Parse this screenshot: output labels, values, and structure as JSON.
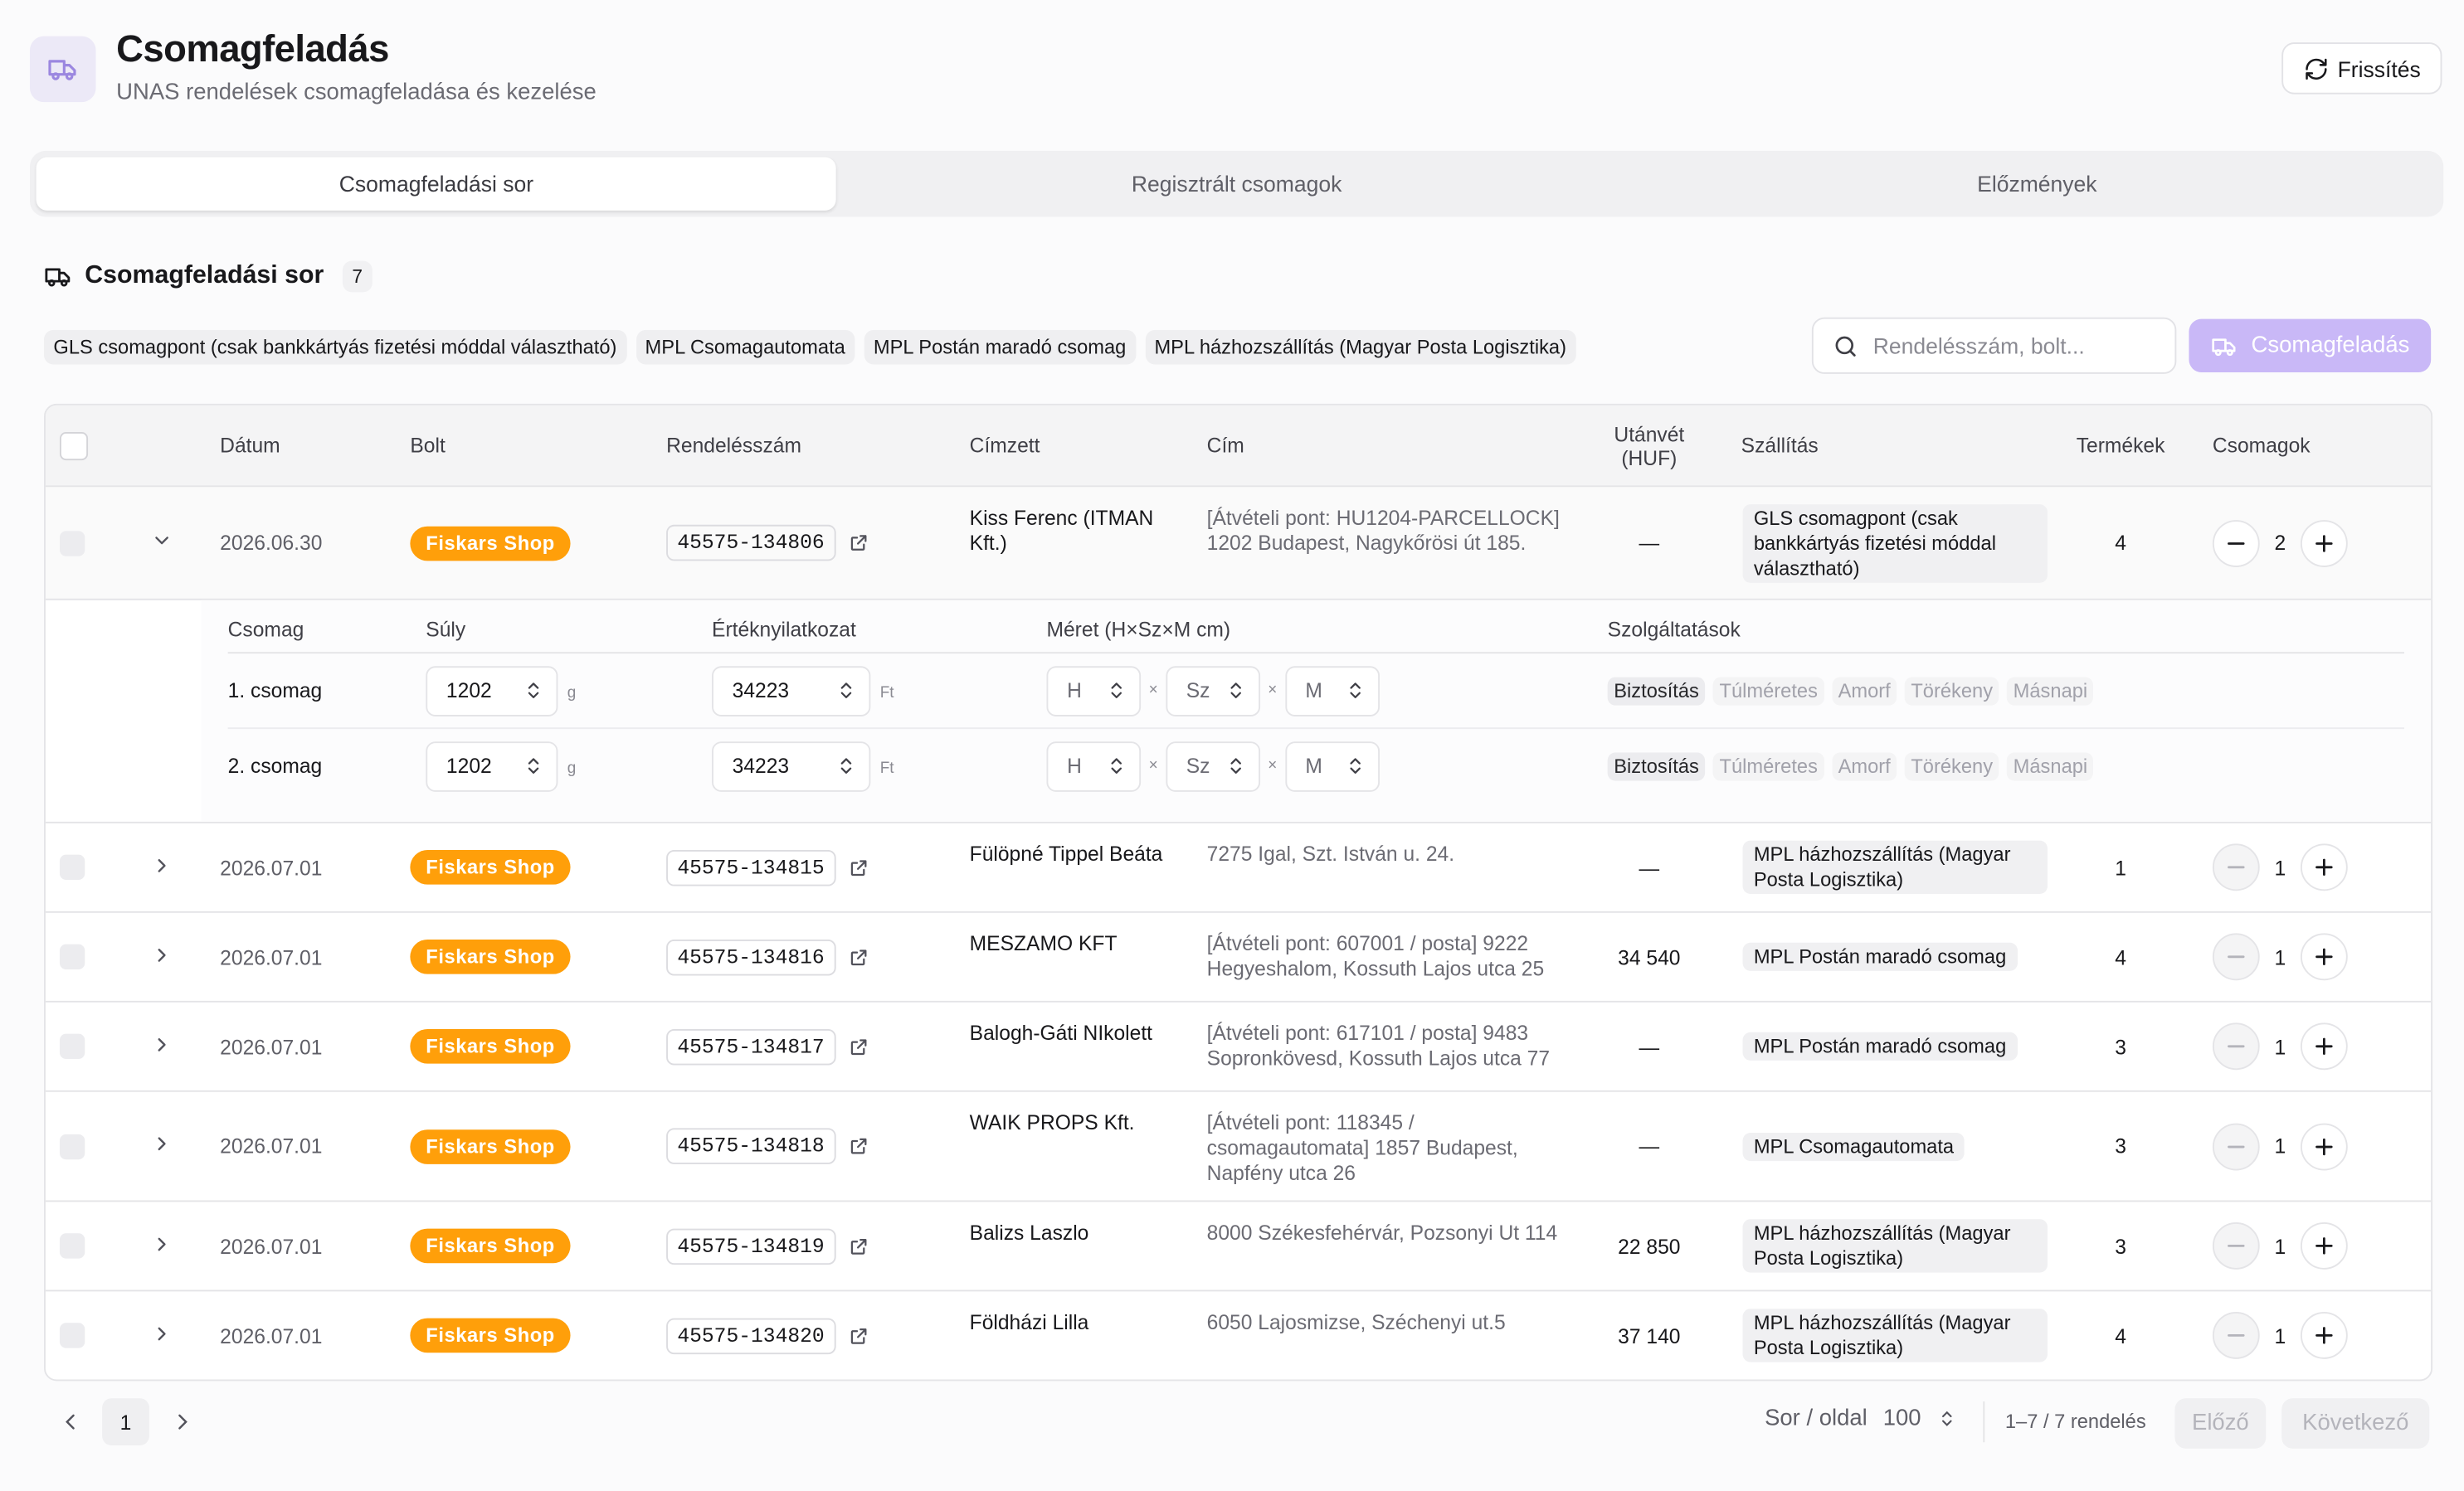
{
  "header": {
    "title": "Csomagfeladás",
    "subtitle": "UNAS rendelések csomagfeladása és kezelése",
    "refresh_button": "Frissítés"
  },
  "tabs": [
    "Csomagfeladási sor",
    "Regisztrált csomagok",
    "Előzmények"
  ],
  "section": {
    "title": "Csomagfeladási sor",
    "count": 7
  },
  "filters": [
    "GLS csomagpont (csak bankkártyás fizetési móddal választható)",
    "MPL Csomagautomata",
    "MPL Postán maradó csomag",
    "MPL házhozszállítás (Magyar Posta Logisztika)"
  ],
  "search_placeholder": "Rendelésszám, bolt...",
  "submit_button": "Csomagfeladás",
  "table": {
    "columns": [
      "Dátum",
      "Bolt",
      "Rendelésszám",
      "Címzett",
      "Cím",
      "Utánvét (HUF)",
      "Szállítás",
      "Termékek",
      "Csomagok"
    ],
    "rows": [
      {
        "date": "2026.06.30",
        "shop": "Fiskars Shop",
        "order": "45575-134806",
        "recipient": "Kiss Ferenc (ITMAN Kft.)",
        "address": "[Átvételi pont: HU1204-PARCELLOCK] 1202 Budapest, Nagykőrösi út 185.",
        "cod": "—",
        "shipping": "GLS csomagpont (csak bankkártyás fizetési móddal választható)",
        "products": 4,
        "packages": 2
      },
      {
        "date": "2026.07.01",
        "shop": "Fiskars Shop",
        "order": "45575-134815",
        "recipient": "Fülöpné Tippel Beáta",
        "address": "7275 Igal, Szt. István u. 24.",
        "cod": "—",
        "shipping": "MPL házhozszállítás (Magyar Posta Logisztika)",
        "products": 1,
        "packages": 1
      },
      {
        "date": "2026.07.01",
        "shop": "Fiskars Shop",
        "order": "45575-134816",
        "recipient": "MESZAMO KFT",
        "address": "[Átvételi pont: 607001 / posta] 9222 Hegyeshalom, Kossuth Lajos utca 25",
        "cod": "34 540",
        "shipping": "MPL Postán maradó csomag",
        "products": 4,
        "packages": 1
      },
      {
        "date": "2026.07.01",
        "shop": "Fiskars Shop",
        "order": "45575-134817",
        "recipient": "Balogh-Gáti NIkolett",
        "address": "[Átvételi pont: 617101 / posta] 9483 Sopronkövesd, Kossuth Lajos utca 77",
        "cod": "—",
        "shipping": "MPL Postán maradó csomag",
        "products": 3,
        "packages": 1
      },
      {
        "date": "2026.07.01",
        "shop": "Fiskars Shop",
        "order": "45575-134818",
        "recipient": "WAIK PROPS Kft.",
        "address": "[Átvételi pont: 118345 / csomagautomata] 1857 Budapest, Napfény utca 26",
        "cod": "—",
        "shipping": "MPL Csomagautomata",
        "products": 3,
        "packages": 1
      },
      {
        "date": "2026.07.01",
        "shop": "Fiskars Shop",
        "order": "45575-134819",
        "recipient": "Balizs Laszlo",
        "address": "8000 Székesfehérvár, Pozsonyi Ut 114",
        "cod": "22 850",
        "shipping": "MPL házhozszállítás (Magyar Posta Logisztika)",
        "products": 3,
        "packages": 1
      },
      {
        "date": "2026.07.01",
        "shop": "Fiskars Shop",
        "order": "45575-134820",
        "recipient": "Földházi Lilla",
        "address": "6050 Lajosmizse, Széchenyi ut.5",
        "cod": "37 140",
        "shipping": "MPL házhozszállítás (Magyar Posta Logisztika)",
        "products": 4,
        "packages": 1
      }
    ]
  },
  "detail": {
    "columns": [
      "Csomag",
      "Súly",
      "Értéknyilatkozat",
      "Méret (H×Sz×M cm)",
      "Szolgáltatások"
    ],
    "packages": [
      {
        "name": "1. csomag",
        "weight": 1202,
        "weight_unit": "g",
        "value": 34223,
        "value_unit": "Ft"
      },
      {
        "name": "2. csomag",
        "weight": 1202,
        "weight_unit": "g",
        "value": 34223,
        "value_unit": "Ft"
      }
    ],
    "dim_placeholders": [
      "H",
      "Sz",
      "M"
    ],
    "dim_separator": "×",
    "services": [
      "Biztosítás",
      "Túlméretes",
      "Amorf",
      "Törékeny",
      "Másnapi"
    ]
  },
  "pagination": {
    "page": 1,
    "rows_per_page_label": "Sor / oldal",
    "rows_per_page": 100,
    "range": "1–7 / 7 rendelés",
    "prev": "Előző",
    "next": "Következő"
  }
}
